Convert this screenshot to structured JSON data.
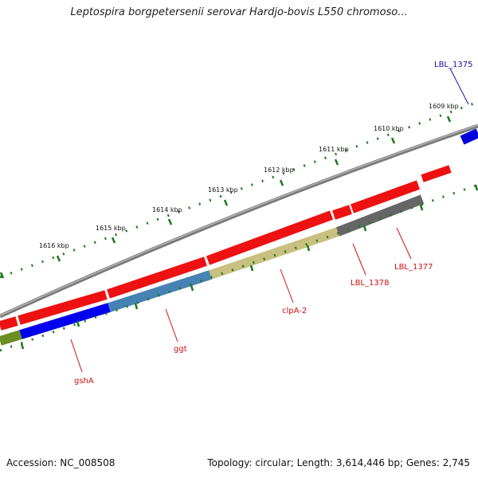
{
  "title": "Leptospira borgpetersenii serovar Hardjo-bovis L550 chromoso...",
  "footer": {
    "accession": "Accession: NC_008508",
    "summary": "Topology: circular; Length: 3,614,446 bp; Genes: 2,745"
  },
  "colors": {
    "backbone": "#808080",
    "cds": "#ee1111",
    "tick": "#1a7a1a",
    "gene_label": "#cc1111",
    "gene_label_alt": "#1111aa"
  },
  "ticks": [
    {
      "label": "1609 kbp"
    },
    {
      "label": "1610 kbp"
    },
    {
      "label": "1611 kbp"
    },
    {
      "label": "1612 kbp"
    },
    {
      "label": "1613 kbp"
    },
    {
      "label": "1614 kbp"
    },
    {
      "label": "1615 kbp"
    },
    {
      "label": "1616 kbp"
    }
  ],
  "genes": [
    {
      "label": "LBL_1375",
      "color": "blue"
    },
    {
      "label": "LBL_1377",
      "color": "red"
    },
    {
      "label": "LBL_1378",
      "color": "red"
    },
    {
      "label": "clpA-2",
      "color": "red"
    },
    {
      "label": "ggt",
      "color": "red"
    },
    {
      "label": "gshA",
      "color": "red"
    }
  ]
}
